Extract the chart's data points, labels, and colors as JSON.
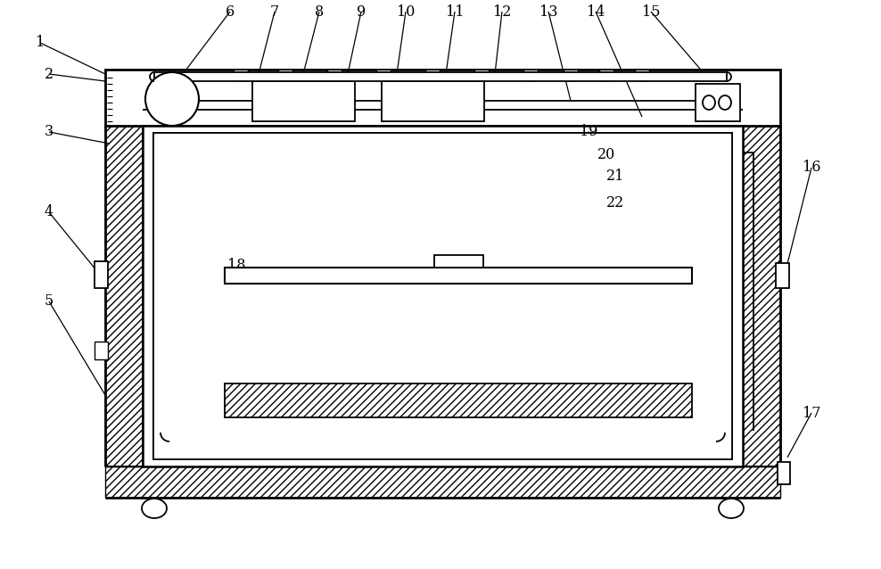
{
  "bg_color": "#ffffff",
  "lc": "#000000",
  "fig_width": 9.88,
  "fig_height": 6.38,
  "dpi": 100
}
